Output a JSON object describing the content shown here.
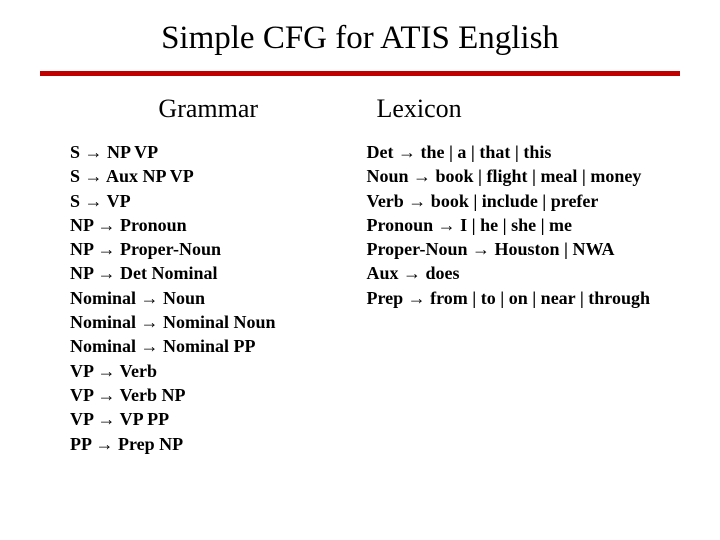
{
  "title": "Simple CFG for ATIS English",
  "divider_color": "#c00000",
  "background_color": "#ffffff",
  "text_color": "#000000",
  "title_fontsize": 33,
  "header_fontsize": 26,
  "body_fontsize": 18,
  "grammar": {
    "header": "Grammar",
    "rules": [
      "S → NP VP",
      "S → Aux NP VP",
      "S → VP",
      "NP → Pronoun",
      "NP → Proper-Noun",
      "NP → Det Nominal",
      "Nominal → Noun",
      "Nominal → Nominal Noun",
      "Nominal → Nominal PP",
      "VP → Verb",
      "VP → Verb NP",
      "VP → VP PP",
      "PP → Prep NP"
    ]
  },
  "lexicon": {
    "header": "Lexicon",
    "rules": [
      "Det → the | a | that | this",
      "Noun → book | flight | meal | money",
      "Verb → book | include | prefer",
      "Pronoun → I | he | she | me",
      "Proper-Noun → Houston | NWA",
      "Aux → does",
      "Prep → from | to | on | near | through"
    ]
  }
}
